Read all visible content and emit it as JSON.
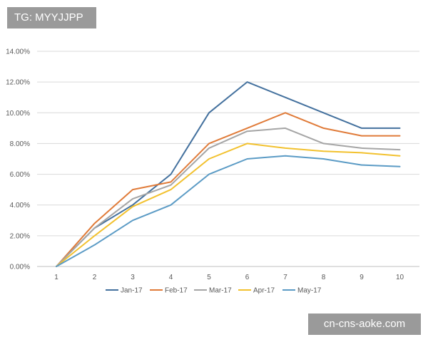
{
  "watermark_top": "TG: MYYJJPP",
  "watermark_bottom": "cn-cns-aoke.com",
  "chart_data": {
    "type": "line",
    "title": "",
    "xlabel": "",
    "ylabel": "",
    "x": [
      1,
      2,
      3,
      4,
      5,
      6,
      7,
      8,
      9,
      10
    ],
    "x_tick_labels": [
      "1",
      "2",
      "3",
      "4",
      "5",
      "6",
      "7",
      "8",
      "9",
      "10"
    ],
    "ylim": [
      0,
      14
    ],
    "y_ticks": [
      0,
      2,
      4,
      6,
      8,
      10,
      12,
      14
    ],
    "y_tick_labels": [
      "0.00%",
      "2.00%",
      "4.00%",
      "6.00%",
      "8.00%",
      "10.00%",
      "12.00%",
      "14.00%"
    ],
    "y_unit": "%",
    "grid": true,
    "legend_position": "bottom",
    "series": [
      {
        "name": "Jan-17",
        "color": "#44719e",
        "values": [
          0,
          2.5,
          4.0,
          6.0,
          10.0,
          12.0,
          11.0,
          10.0,
          9.0,
          9.0
        ]
      },
      {
        "name": "Feb-17",
        "color": "#e07b39",
        "values": [
          0,
          2.8,
          5.0,
          5.5,
          8.0,
          9.0,
          10.0,
          9.0,
          8.5,
          8.5
        ]
      },
      {
        "name": "Mar-17",
        "color": "#a5a5a5",
        "values": [
          0,
          2.5,
          4.4,
          5.3,
          7.7,
          8.8,
          9.0,
          8.0,
          7.7,
          7.6
        ]
      },
      {
        "name": "Apr-17",
        "color": "#f2c12e",
        "values": [
          0,
          2.0,
          3.9,
          5.0,
          7.0,
          8.0,
          7.7,
          7.5,
          7.4,
          7.2
        ]
      },
      {
        "name": "May-17",
        "color": "#5b9bc5",
        "values": [
          0,
          1.4,
          3.0,
          4.0,
          6.0,
          7.0,
          7.2,
          7.0,
          6.6,
          6.5
        ]
      }
    ]
  }
}
